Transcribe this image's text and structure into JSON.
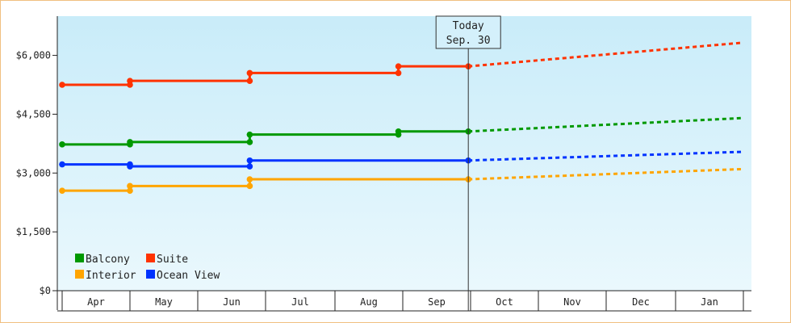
{
  "chart_data": {
    "type": "line",
    "y_axis": {
      "ticks": [
        "$0",
        "$1,500",
        "$3,000",
        "$4,500",
        "$6,000"
      ],
      "tick_values": [
        0,
        1500,
        3000,
        4500,
        6000
      ],
      "ylim": [
        0,
        7000
      ]
    },
    "x_axis": {
      "months": [
        "Apr",
        "May",
        "Jun",
        "Jul",
        "Aug",
        "Sep",
        "Oct",
        "Nov",
        "Dec",
        "Jan"
      ],
      "start": "Apr 1",
      "end": "Feb 1"
    },
    "today": {
      "line1": "Today",
      "line2": "Sep. 30",
      "date": "Sep 30"
    },
    "grid": false,
    "legend_position": "bottom-left",
    "series": [
      {
        "name": "Suite",
        "color": "#ff3300",
        "history": [
          {
            "date": "Apr 1",
            "value": 5250
          },
          {
            "date": "May 1",
            "value": 5250
          },
          {
            "date": "May 1",
            "value": 5350
          },
          {
            "date": "Jun 24",
            "value": 5350
          },
          {
            "date": "Jun 24",
            "value": 5550
          },
          {
            "date": "Aug 30",
            "value": 5550
          },
          {
            "date": "Aug 30",
            "value": 5720
          },
          {
            "date": "Sep 30",
            "value": 5720
          }
        ],
        "forecast": [
          {
            "date": "Sep 30",
            "value": 5720
          },
          {
            "date": "Jan 31",
            "value": 6320
          }
        ]
      },
      {
        "name": "Balcony",
        "color": "#009900",
        "history": [
          {
            "date": "Apr 1",
            "value": 3730
          },
          {
            "date": "May 1",
            "value": 3730
          },
          {
            "date": "May 1",
            "value": 3790
          },
          {
            "date": "Jun 24",
            "value": 3790
          },
          {
            "date": "Jun 24",
            "value": 3980
          },
          {
            "date": "Aug 30",
            "value": 3980
          },
          {
            "date": "Aug 30",
            "value": 4060
          },
          {
            "date": "Sep 30",
            "value": 4060
          }
        ],
        "forecast": [
          {
            "date": "Sep 30",
            "value": 4060
          },
          {
            "date": "Jan 31",
            "value": 4400
          }
        ]
      },
      {
        "name": "Ocean View",
        "color": "#0033ff",
        "history": [
          {
            "date": "Apr 1",
            "value": 3220
          },
          {
            "date": "May 1",
            "value": 3220
          },
          {
            "date": "May 1",
            "value": 3170
          },
          {
            "date": "Jun 24",
            "value": 3170
          },
          {
            "date": "Jun 24",
            "value": 3320
          },
          {
            "date": "Sep 30",
            "value": 3320
          }
        ],
        "forecast": [
          {
            "date": "Sep 30",
            "value": 3320
          },
          {
            "date": "Jan 31",
            "value": 3540
          }
        ]
      },
      {
        "name": "Interior",
        "color": "#ffa500",
        "history": [
          {
            "date": "Apr 1",
            "value": 2550
          },
          {
            "date": "May 1",
            "value": 2550
          },
          {
            "date": "May 1",
            "value": 2670
          },
          {
            "date": "Jun 24",
            "value": 2670
          },
          {
            "date": "Jun 24",
            "value": 2840
          },
          {
            "date": "Sep 30",
            "value": 2840
          }
        ],
        "forecast": [
          {
            "date": "Sep 30",
            "value": 2840
          },
          {
            "date": "Jan 31",
            "value": 3100
          }
        ]
      }
    ],
    "legend_order": [
      "Balcony",
      "Suite",
      "Interior",
      "Ocean View"
    ]
  }
}
